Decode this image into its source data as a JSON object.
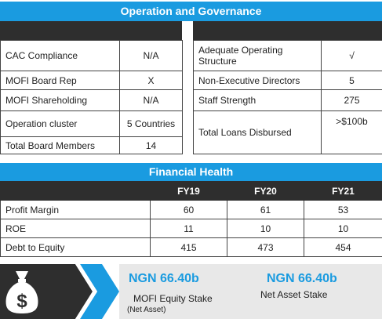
{
  "operation": {
    "title": "Operation and Governance",
    "left_rows": [
      {
        "label": "CAC Compliance",
        "value": "N/A"
      },
      {
        "label": "MOFI Board Rep",
        "value": "X"
      },
      {
        "label": "MOFI Shareholding",
        "value": "N/A"
      },
      {
        "label": "Operation cluster",
        "value": "5 Countries"
      },
      {
        "label": "Total Board Members",
        "value": "14"
      }
    ],
    "right_rows": [
      {
        "label": "Adequate Operating Structure",
        "value": "√"
      },
      {
        "label": "Non-Executive Directors",
        "value": "5"
      },
      {
        "label": "Staff Strength",
        "value": "275"
      },
      {
        "label": "Total Loans Disbursed",
        "value": ">$100b"
      }
    ]
  },
  "financial": {
    "title": "Financial Health",
    "years": [
      "FY19",
      "FY20",
      "FY21"
    ],
    "rows": [
      {
        "label": "Profit Margin",
        "values": [
          "60",
          "61",
          "53"
        ]
      },
      {
        "label": "ROE",
        "values": [
          "11",
          "10",
          "10"
        ]
      },
      {
        "label": "Debt to Equity",
        "values": [
          "415",
          "473",
          "454"
        ]
      }
    ]
  },
  "stakes": {
    "equity": {
      "amount": "NGN 66.40b",
      "label": "MOFI Equity Stake",
      "sub": "(Net Asset)"
    },
    "net_asset": {
      "amount": "NGN 66.40b",
      "label": "Net Asset Stake"
    }
  },
  "colors": {
    "accent": "#1a9be0",
    "dark": "#2e2e2e",
    "panel": "#e8e8e8"
  },
  "icons": {
    "money": "money-bag-icon",
    "chevron": "chevron-right-icon"
  }
}
